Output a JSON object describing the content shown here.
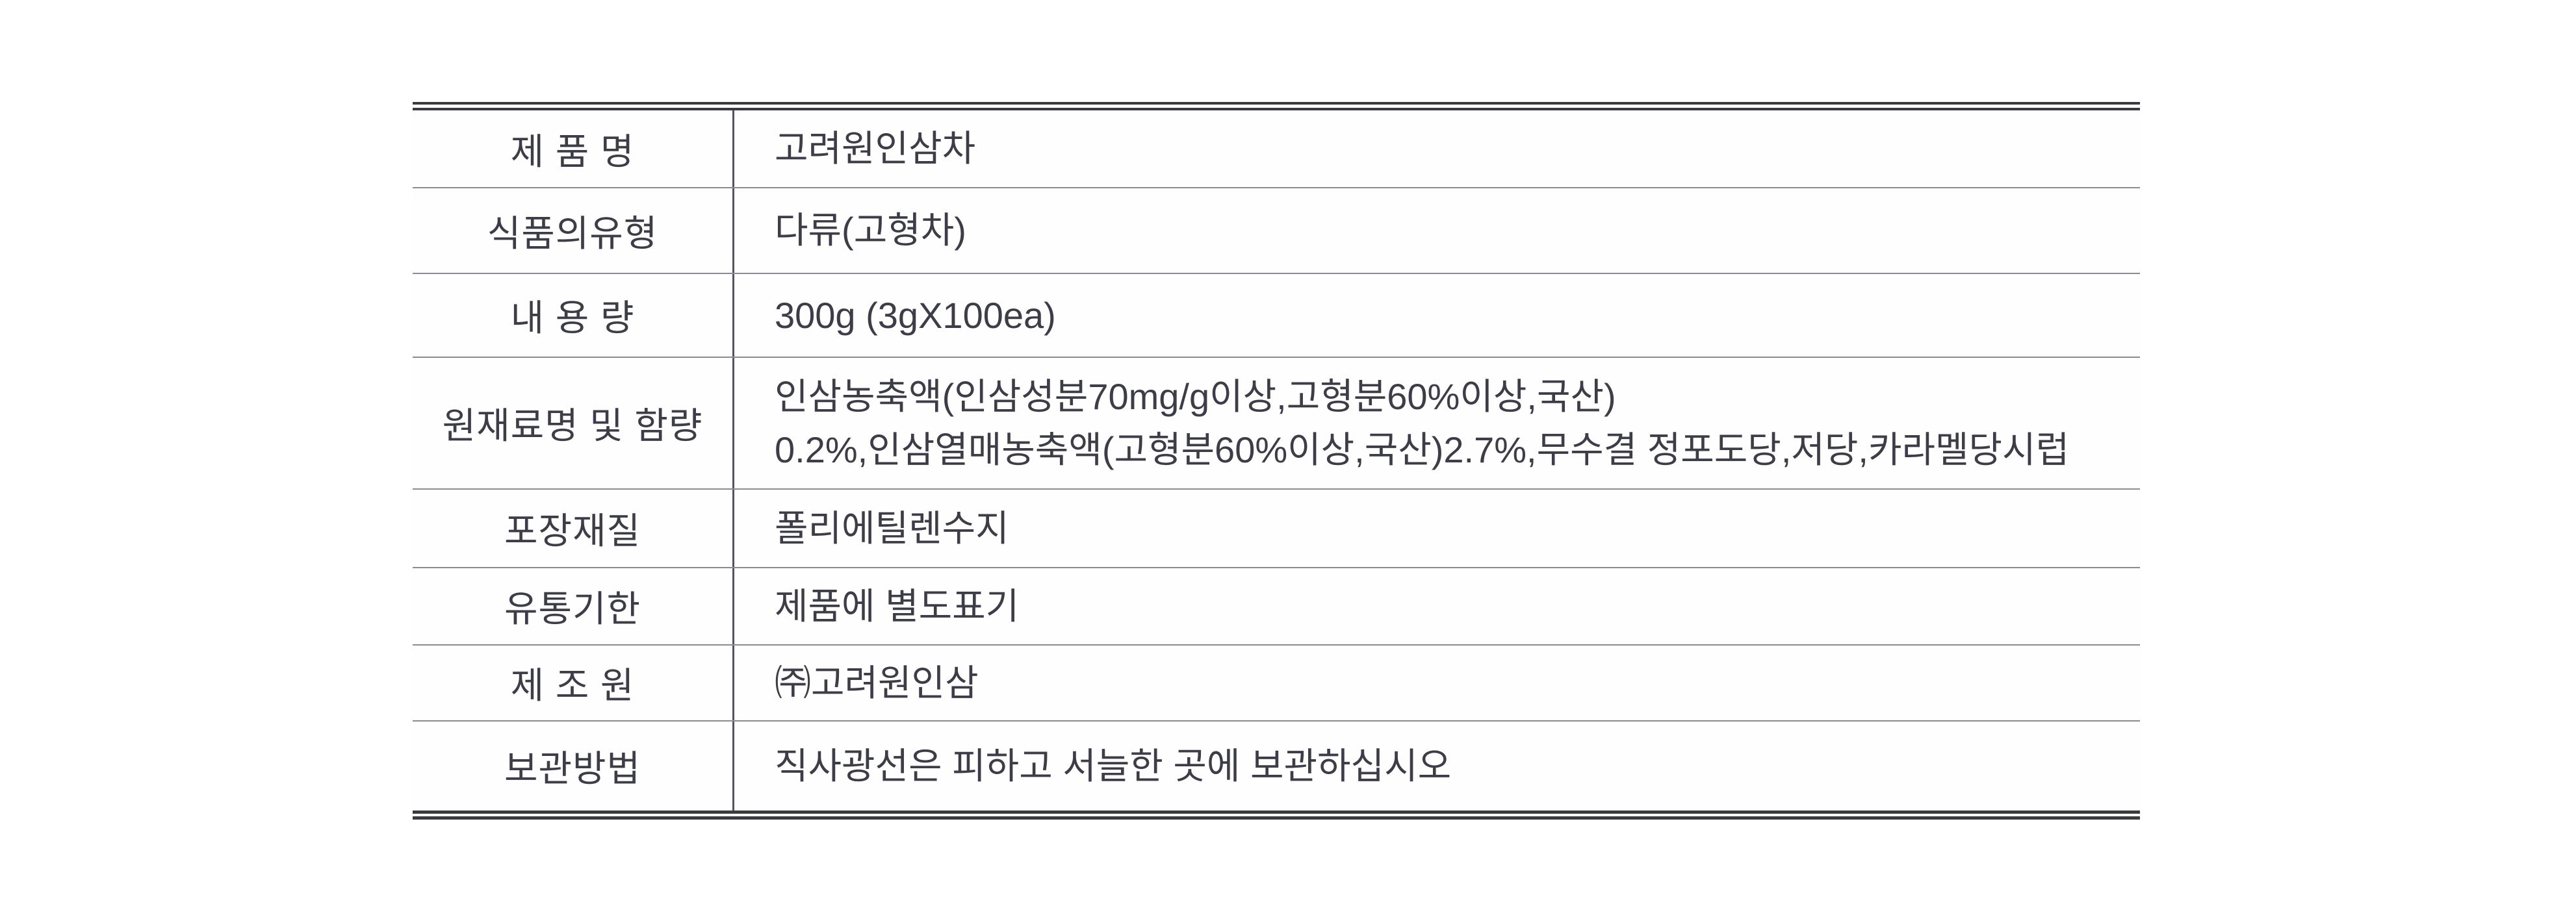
{
  "page": {
    "background_color": "#ffffff",
    "text_color": "#3d3d47",
    "strong_border_color": "#3b3b3f",
    "row_divider_color": "#8b8b93",
    "column_divider_color": "#54545c"
  },
  "table": {
    "rows": [
      {
        "label": "제 품 명",
        "value": "고려원인삼차"
      },
      {
        "label": "식품의유형",
        "value": "다류(고형차)"
      },
      {
        "label": "내 용 량",
        "value": "300g (3gX100ea)"
      },
      {
        "label": "원재료명 및 함량",
        "value_lines": [
          "인삼농축액(인삼성분70mg/g이상,고형분60%이상,국산)",
          "0.2%,인삼열매농축액(고형분60%이상,국산)2.7%,무수결 정포도당,저당,카라멜당시럽"
        ]
      },
      {
        "label": "포장재질",
        "value": "폴리에틸렌수지"
      },
      {
        "label": "유통기한",
        "value": "제품에 별도표기"
      },
      {
        "label": "제 조 원",
        "value": "㈜고려원인삼"
      },
      {
        "label": "보관방법",
        "value": "직사광선은 피하고 서늘한 곳에 보관하십시오"
      }
    ]
  }
}
